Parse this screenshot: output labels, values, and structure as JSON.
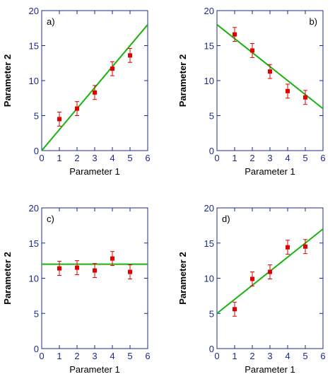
{
  "chart_data": [
    {
      "type": "scatter",
      "panel_label": "a)",
      "xlabel": "Parameter 1",
      "ylabel": "Parameter 2",
      "xlim": [
        0,
        6
      ],
      "ylim": [
        0,
        20
      ],
      "x_ticks": [
        0,
        1,
        2,
        3,
        4,
        5,
        6
      ],
      "y_ticks": [
        0,
        5,
        10,
        15,
        20
      ],
      "grid": false,
      "points": [
        {
          "x": 1,
          "y": 4.5,
          "err": 1.0
        },
        {
          "x": 2,
          "y": 6.0,
          "err": 1.0
        },
        {
          "x": 3,
          "y": 8.3,
          "err": 1.0
        },
        {
          "x": 4,
          "y": 11.7,
          "err": 1.0
        },
        {
          "x": 5,
          "y": 13.6,
          "err": 1.0
        }
      ],
      "fit_line": {
        "x": [
          0,
          6
        ],
        "y": [
          0,
          18
        ]
      }
    },
    {
      "type": "scatter",
      "panel_label": "b)",
      "xlabel": "Parameter 1",
      "ylabel": "Parameter 2",
      "xlim": [
        0,
        6
      ],
      "ylim": [
        0,
        20
      ],
      "x_ticks": [
        0,
        1,
        2,
        3,
        4,
        5,
        6
      ],
      "y_ticks": [
        0,
        5,
        10,
        15,
        20
      ],
      "grid": false,
      "points": [
        {
          "x": 1,
          "y": 16.6,
          "err": 1.0
        },
        {
          "x": 2,
          "y": 14.3,
          "err": 1.0
        },
        {
          "x": 3,
          "y": 11.3,
          "err": 1.0
        },
        {
          "x": 4,
          "y": 8.5,
          "err": 1.0
        },
        {
          "x": 5,
          "y": 7.6,
          "err": 1.0
        }
      ],
      "fit_line": {
        "x": [
          0,
          6
        ],
        "y": [
          18,
          6
        ]
      }
    },
    {
      "type": "scatter",
      "panel_label": "c)",
      "xlabel": "Parameter 1",
      "ylabel": "Parameter 2",
      "xlim": [
        0,
        6
      ],
      "ylim": [
        0,
        20
      ],
      "x_ticks": [
        0,
        1,
        2,
        3,
        4,
        5,
        6
      ],
      "y_ticks": [
        0,
        5,
        10,
        15,
        20
      ],
      "grid": false,
      "points": [
        {
          "x": 1,
          "y": 11.4,
          "err": 1.0
        },
        {
          "x": 2,
          "y": 11.5,
          "err": 1.0
        },
        {
          "x": 3,
          "y": 11.1,
          "err": 1.0
        },
        {
          "x": 4,
          "y": 12.8,
          "err": 1.0
        },
        {
          "x": 5,
          "y": 10.9,
          "err": 1.0
        }
      ],
      "fit_line": {
        "x": [
          0,
          6
        ],
        "y": [
          12,
          12
        ]
      }
    },
    {
      "type": "scatter",
      "panel_label": "d)",
      "xlabel": "Parameter 1",
      "ylabel": "Parameter 2",
      "xlim": [
        0,
        6
      ],
      "ylim": [
        0,
        20
      ],
      "x_ticks": [
        0,
        1,
        2,
        3,
        4,
        5,
        6
      ],
      "y_ticks": [
        0,
        5,
        10,
        15,
        20
      ],
      "grid": false,
      "points": [
        {
          "x": 1,
          "y": 5.6,
          "err": 1.0
        },
        {
          "x": 2,
          "y": 9.9,
          "err": 1.0
        },
        {
          "x": 3,
          "y": 10.9,
          "err": 1.0
        },
        {
          "x": 4,
          "y": 14.4,
          "err": 1.0
        },
        {
          "x": 5,
          "y": 14.5,
          "err": 1.0
        }
      ],
      "fit_line": {
        "x": [
          0,
          6
        ],
        "y": [
          5,
          17
        ]
      }
    }
  ],
  "colors": {
    "axis": "#1c2a8a",
    "point": "#e00000",
    "error_bar": "#e00000",
    "fit_line": "#19b30f"
  }
}
